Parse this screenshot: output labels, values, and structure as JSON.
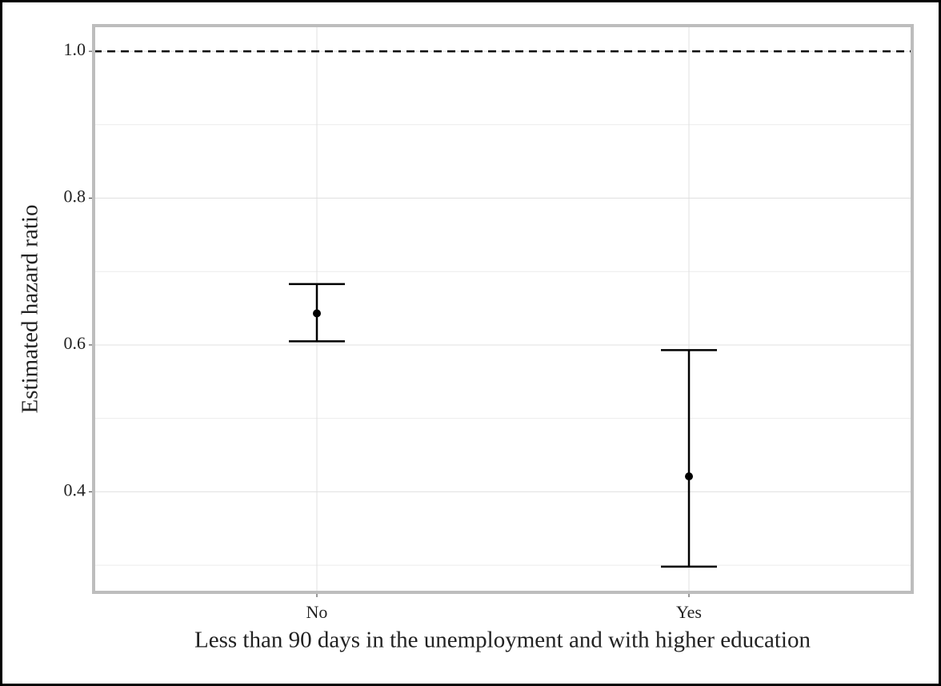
{
  "chart_data": {
    "type": "errorbar",
    "x_label": "Less than 90 days in the unemployment and with higher education",
    "y_label": "Estimated hazard ratio",
    "categories": [
      "No",
      "Yes"
    ],
    "values": [
      0.643,
      0.421
    ],
    "lower": [
      0.605,
      0.298
    ],
    "upper": [
      0.683,
      0.593
    ],
    "color": "#000000",
    "ylim": [
      0.263,
      1.035
    ],
    "yticks": [
      {
        "value": 0.4,
        "label": "0.4"
      },
      {
        "value": 0.6,
        "label": "0.6"
      },
      {
        "value": 0.8,
        "label": "0.8"
      },
      {
        "value": 1.0,
        "label": "1.0"
      }
    ],
    "minor_yticks": [
      0.3,
      0.5,
      0.7,
      0.9
    ],
    "hline": 1,
    "grid": true
  }
}
